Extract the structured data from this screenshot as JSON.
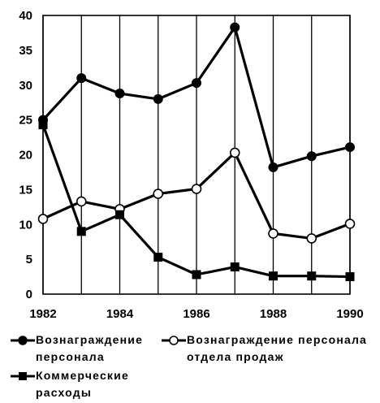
{
  "chart_data": {
    "type": "line",
    "title": "",
    "xlabel": "",
    "ylabel": "",
    "x": [
      1982,
      1983,
      1984,
      1985,
      1986,
      1987,
      1988,
      1989,
      1990
    ],
    "xlim": [
      1982,
      1990
    ],
    "ylim": [
      0,
      40
    ],
    "x_ticks": [
      "1982",
      "1984",
      "1986",
      "1988",
      "1990"
    ],
    "y_ticks": [
      "0",
      "5",
      "10",
      "15",
      "20",
      "25",
      "30",
      "35",
      "40"
    ],
    "grid": "vertical",
    "legend_position": "bottom",
    "series": [
      {
        "name": "Вознаграждение персонала",
        "marker": "filled-circle",
        "color": "#000000",
        "values": [
          25.0,
          31.0,
          28.8,
          28.0,
          30.3,
          38.3,
          18.2,
          19.8,
          21.1
        ]
      },
      {
        "name": "Вознаграждение персонала отдела продаж",
        "marker": "open-circle",
        "color": "#000000",
        "values": [
          10.8,
          13.3,
          12.2,
          14.4,
          15.1,
          20.3,
          8.7,
          8.0,
          10.1
        ]
      },
      {
        "name": "Коммерческие расходы",
        "marker": "filled-square",
        "color": "#000000",
        "values": [
          24.3,
          9.0,
          11.4,
          5.3,
          2.8,
          3.9,
          2.6,
          2.6,
          2.5
        ]
      }
    ]
  }
}
